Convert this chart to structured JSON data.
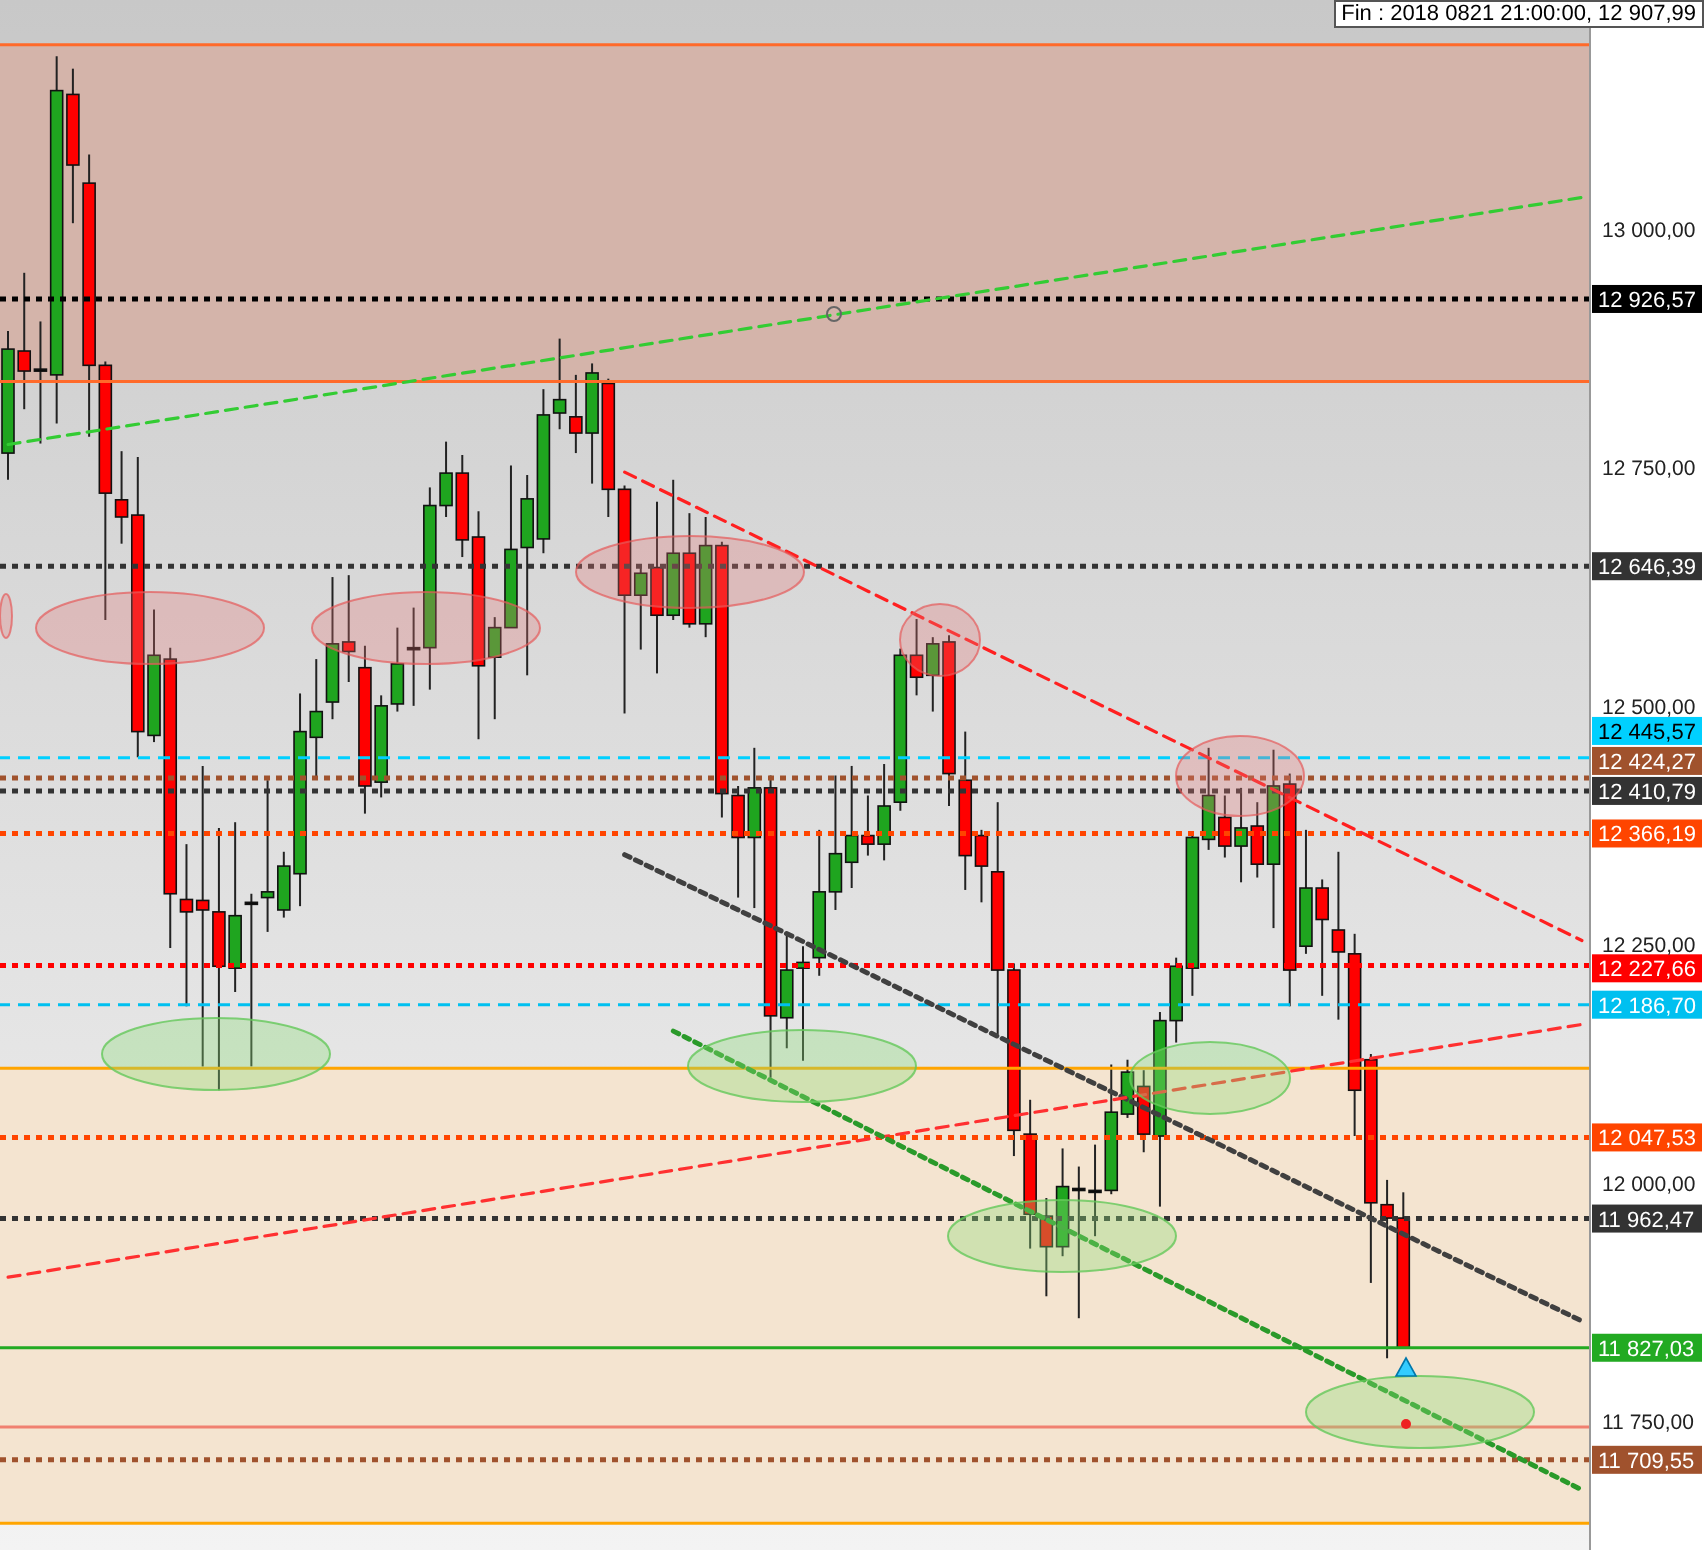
{
  "chart_data": {
    "type": "candlestick",
    "categories": [
      null,
      null,
      null,
      null,
      null,
      null,
      null,
      null,
      null,
      null,
      null,
      null,
      null,
      null,
      null,
      null,
      null,
      null,
      null,
      null,
      null,
      null,
      null,
      null,
      null,
      null,
      null,
      null,
      null,
      null,
      null,
      null,
      null,
      null,
      null,
      null,
      null,
      null,
      null,
      null,
      null,
      null,
      null,
      null,
      null,
      null,
      null,
      null,
      null,
      null,
      null,
      null,
      null,
      null,
      null,
      null,
      null,
      null,
      null,
      null,
      null,
      null,
      null,
      null,
      null,
      null,
      null,
      null,
      null,
      null,
      null,
      null,
      null,
      null,
      null,
      null,
      null,
      null,
      null,
      null,
      null,
      null,
      null,
      null,
      null,
      null,
      null,
      null,
      null,
      null,
      null,
      null,
      null,
      null,
      null,
      null,
      null,
      null
    ],
    "ohlc": [
      [
        12765,
        12893,
        12737,
        12874
      ],
      [
        12872,
        12954,
        12811,
        12851
      ],
      [
        12853,
        12903,
        12775,
        12853
      ],
      [
        12847,
        13181,
        12796,
        13145
      ],
      [
        13141,
        13168,
        13006,
        13067
      ],
      [
        13048,
        13078,
        12782,
        12857
      ],
      [
        12857,
        12861,
        12590,
        12723
      ],
      [
        12716,
        12767,
        12670,
        12698
      ],
      [
        12700,
        12761,
        12446,
        12473
      ],
      [
        12469,
        12601,
        12462,
        12553
      ],
      [
        12549,
        12561,
        12246,
        12303
      ],
      [
        12297,
        12355,
        12185,
        12284
      ],
      [
        12296,
        12437,
        12122,
        12286
      ],
      [
        12284,
        12372,
        12097,
        12227
      ],
      [
        12225,
        12378,
        12200,
        12280
      ],
      [
        12294,
        12303,
        12122,
        12294
      ],
      [
        12299,
        12422,
        12263,
        12305
      ],
      [
        12286,
        12347,
        12278,
        12332
      ],
      [
        12324,
        12513,
        12290,
        12473
      ],
      [
        12467,
        12549,
        12423,
        12494
      ],
      [
        12504,
        12635,
        12486,
        12565
      ],
      [
        12567,
        12637,
        12525,
        12557
      ],
      [
        12540,
        12563,
        12387,
        12416
      ],
      [
        12420,
        12511,
        12404,
        12500
      ],
      [
        12502,
        12582,
        12494,
        12544
      ],
      [
        12561,
        12603,
        12500,
        12561
      ],
      [
        12561,
        12729,
        12517,
        12710
      ],
      [
        12710,
        12777,
        12698,
        12744
      ],
      [
        12744,
        12763,
        12656,
        12674
      ],
      [
        12677,
        12704,
        12465,
        12542
      ],
      [
        12551,
        12593,
        12486,
        12582
      ],
      [
        12582,
        12752,
        12582,
        12664
      ],
      [
        12666,
        12742,
        12532,
        12717
      ],
      [
        12675,
        12832,
        12660,
        12805
      ],
      [
        12807,
        12885,
        12790,
        12821
      ],
      [
        12803,
        12847,
        12765,
        12786
      ],
      [
        12786,
        12859,
        12733,
        12849
      ],
      [
        12838,
        12843,
        12698,
        12727
      ],
      [
        12727,
        12731,
        12492,
        12616
      ],
      [
        12616,
        12645,
        12559,
        12639
      ],
      [
        12645,
        12714,
        12534,
        12595
      ],
      [
        12595,
        12737,
        12590,
        12660
      ],
      [
        12660,
        12702,
        12582,
        12586
      ],
      [
        12586,
        12698,
        12572,
        12668
      ],
      [
        12668,
        12672,
        12383,
        12408
      ],
      [
        12406,
        12416,
        12299,
        12362
      ],
      [
        12362,
        12456,
        12288,
        12414
      ],
      [
        12414,
        12427,
        12110,
        12175
      ],
      [
        12173,
        12263,
        12141,
        12223
      ],
      [
        12225,
        12248,
        12128,
        12231
      ],
      [
        12236,
        12370,
        12217,
        12305
      ],
      [
        12305,
        12427,
        12286,
        12345
      ],
      [
        12336,
        12437,
        12309,
        12364
      ],
      [
        12364,
        12406,
        12343,
        12355
      ],
      [
        12355,
        12439,
        12338,
        12395
      ],
      [
        12399,
        12560,
        12390,
        12553
      ],
      [
        12553,
        12591,
        12511,
        12530
      ],
      [
        12532,
        12572,
        12494,
        12565
      ],
      [
        12567,
        12574,
        12395,
        12429
      ],
      [
        12422,
        12473,
        12307,
        12343
      ],
      [
        12364,
        12370,
        12294,
        12332
      ],
      [
        12326,
        12399,
        12156,
        12223
      ],
      [
        12223,
        12230,
        12028,
        12055
      ],
      [
        12051,
        12087,
        11931,
        11967
      ],
      [
        11965,
        11984,
        11881,
        11933
      ],
      [
        11933,
        12036,
        11923,
        11996
      ],
      [
        11994,
        12017,
        11858,
        11994
      ],
      [
        11992,
        12040,
        11944,
        11992
      ],
      [
        11992,
        12124,
        11988,
        12074
      ],
      [
        12072,
        12129,
        12068,
        12116
      ],
      [
        12101,
        12118,
        12032,
        12051
      ],
      [
        12049,
        12179,
        11975,
        12170
      ],
      [
        12170,
        12236,
        12147,
        12227
      ],
      [
        12225,
        12368,
        12196,
        12362
      ],
      [
        12360,
        12456,
        12349,
        12406
      ],
      [
        12383,
        12406,
        12341,
        12353
      ],
      [
        12353,
        12414,
        12315,
        12372
      ],
      [
        12374,
        12399,
        12320,
        12334
      ],
      [
        12334,
        12454,
        12267,
        12416
      ],
      [
        12418,
        12429,
        12185,
        12223
      ],
      [
        12248,
        12370,
        12240,
        12309
      ],
      [
        12309,
        12318,
        12196,
        12276
      ],
      [
        12265,
        12347,
        12171,
        12242
      ],
      [
        12240,
        12261,
        12049,
        12097
      ],
      [
        12129,
        12135,
        11895,
        11979
      ],
      [
        11977,
        12003,
        11816,
        11963
      ],
      [
        11963,
        11990,
        11827,
        11827
      ],
      null,
      null,
      null,
      null,
      null,
      null,
      null,
      null,
      null,
      null,
      null
    ],
    "colors": [
      "#1fa51f",
      "#ff0000",
      "#000000",
      "#1fa51f",
      "#ff0000",
      "#ff0000",
      "#ff0000",
      "#ff0000",
      "#ff0000",
      "#1fa51f",
      "#ff0000",
      "#ff0000",
      "#ff0000",
      "#ff0000",
      "#1fa51f",
      "#000000",
      "#1fa51f",
      "#1fa51f",
      "#1fa51f",
      "#1fa51f",
      "#1fa51f",
      "#ff0000",
      "#ff0000",
      "#1fa51f",
      "#1fa51f",
      "#000000",
      "#1fa51f",
      "#1fa51f",
      "#ff0000",
      "#ff0000",
      "#1fa51f",
      "#1fa51f",
      "#1fa51f",
      "#1fa51f",
      "#1fa51f",
      "#ff0000",
      "#1fa51f",
      "#ff0000",
      "#ff0000",
      "#1fa51f",
      "#ff0000",
      "#1fa51f",
      "#ff0000",
      "#1fa51f",
      "#ff0000",
      "#ff0000",
      "#1fa51f",
      "#ff0000",
      "#1fa51f",
      "#1fa51f",
      "#1fa51f",
      "#1fa51f",
      "#1fa51f",
      "#ff0000",
      "#1fa51f",
      "#1fa51f",
      "#ff0000",
      "#1fa51f",
      "#ff0000",
      "#ff0000",
      "#ff0000",
      "#ff0000",
      "#ff0000",
      "#ff0000",
      "#ff0000",
      "#1fa51f",
      "#000000",
      "#000000",
      "#1fa51f",
      "#1fa51f",
      "#ff0000",
      "#1fa51f",
      "#1fa51f",
      "#1fa51f",
      "#1fa51f",
      "#ff0000",
      "#1fa51f",
      "#ff0000",
      "#1fa51f",
      "#ff0000",
      "#1fa51f",
      "#ff0000",
      "#ff0000",
      "#ff0000",
      "#ff0000",
      "#ff0000",
      "#ff0000",
      null,
      null,
      null,
      null,
      null,
      null,
      null,
      null,
      null,
      null,
      null
    ],
    "series": [
      {
        "type": "line",
        "color": "#33cc33",
        "line_style": "dashed",
        "values": [
          12774,
          null,
          null,
          null,
          null,
          null,
          null,
          null,
          null,
          null,
          null,
          null,
          null,
          null,
          null,
          null,
          null,
          null,
          null,
          null,
          null,
          null,
          null,
          null,
          null,
          null,
          null,
          null,
          null,
          null,
          null,
          null,
          null,
          null,
          null,
          null,
          null,
          null,
          null,
          null,
          null,
          null,
          null,
          null,
          null,
          null,
          null,
          null,
          null,
          null,
          null,
          null,
          null,
          null,
          null,
          null,
          null,
          null,
          null,
          null,
          null,
          null,
          null,
          null,
          null,
          null,
          null,
          null,
          null,
          null,
          null,
          null,
          null,
          null,
          null,
          null,
          null,
          null,
          null,
          null,
          null,
          null,
          null,
          null,
          null,
          null,
          null,
          null,
          null,
          null,
          null,
          null,
          null,
          null,
          null,
          null,
          null,
          13033
        ]
      },
      {
        "type": "line",
        "color": "#ff2020",
        "line_style": "dashed",
        "values": [
          null,
          null,
          null,
          null,
          null,
          null,
          null,
          null,
          null,
          null,
          null,
          null,
          null,
          null,
          null,
          null,
          null,
          null,
          null,
          null,
          null,
          null,
          null,
          null,
          null,
          null,
          null,
          null,
          null,
          null,
          null,
          null,
          null,
          null,
          null,
          null,
          null,
          null,
          12745,
          null,
          null,
          null,
          null,
          null,
          null,
          null,
          null,
          null,
          null,
          null,
          null,
          null,
          null,
          null,
          null,
          null,
          null,
          null,
          null,
          null,
          null,
          null,
          null,
          null,
          null,
          null,
          null,
          null,
          null,
          null,
          null,
          null,
          null,
          null,
          null,
          null,
          null,
          null,
          null,
          null,
          null,
          null,
          null,
          null,
          null,
          null,
          null,
          null,
          null,
          null,
          null,
          null,
          null,
          null,
          null,
          null,
          null,
          12254
        ]
      },
      {
        "type": "line",
        "color": "#404040",
        "line_style": "dotted",
        "values": [
          null,
          null,
          null,
          null,
          null,
          null,
          null,
          null,
          null,
          null,
          null,
          null,
          null,
          null,
          null,
          null,
          null,
          null,
          null,
          null,
          null,
          null,
          null,
          null,
          null,
          null,
          null,
          null,
          null,
          null,
          null,
          null,
          null,
          null,
          null,
          null,
          null,
          null,
          12344,
          null,
          null,
          null,
          null,
          null,
          null,
          null,
          null,
          null,
          null,
          null,
          null,
          null,
          null,
          null,
          null,
          null,
          null,
          null,
          null,
          null,
          null,
          null,
          null,
          null,
          null,
          null,
          null,
          null,
          null,
          null,
          null,
          null,
          null,
          null,
          null,
          null,
          null,
          null,
          null,
          null,
          null,
          null,
          null,
          null,
          null,
          null,
          null,
          null,
          null,
          null,
          null,
          null,
          null,
          null,
          null,
          null,
          null,
          11855
        ]
      },
      {
        "type": "line",
        "color": "#ff3030",
        "line_style": "dashed",
        "values": [
          11901,
          null,
          null,
          null,
          null,
          null,
          null,
          null,
          null,
          null,
          null,
          null,
          null,
          null,
          null,
          null,
          null,
          null,
          null,
          null,
          null,
          null,
          null,
          null,
          null,
          null,
          null,
          null,
          null,
          null,
          null,
          null,
          null,
          null,
          null,
          null,
          null,
          null,
          null,
          null,
          null,
          null,
          null,
          null,
          null,
          null,
          null,
          null,
          null,
          null,
          null,
          null,
          null,
          null,
          null,
          null,
          null,
          null,
          null,
          null,
          null,
          null,
          null,
          null,
          null,
          null,
          null,
          null,
          null,
          null,
          null,
          null,
          null,
          null,
          null,
          null,
          null,
          null,
          null,
          null,
          null,
          null,
          null,
          null,
          null,
          null,
          null,
          null,
          null,
          null,
          null,
          null,
          null,
          null,
          null,
          null,
          null,
          12166
        ]
      },
      {
        "type": "line",
        "color": "#2a9a2a",
        "line_style": "dotted",
        "values": [
          null,
          null,
          null,
          null,
          null,
          null,
          null,
          null,
          null,
          null,
          null,
          null,
          null,
          null,
          null,
          null,
          null,
          null,
          null,
          null,
          null,
          null,
          null,
          null,
          null,
          null,
          null,
          null,
          null,
          null,
          null,
          null,
          null,
          null,
          null,
          null,
          null,
          null,
          null,
          null,
          null,
          12159,
          null,
          null,
          null,
          null,
          null,
          null,
          null,
          null,
          null,
          null,
          null,
          null,
          null,
          null,
          null,
          null,
          null,
          null,
          null,
          null,
          null,
          null,
          null,
          null,
          null,
          null,
          null,
          null,
          null,
          null,
          null,
          null,
          null,
          null,
          null,
          null,
          null,
          null,
          null,
          null,
          null,
          null,
          null,
          null,
          null,
          null,
          null,
          null,
          null,
          null,
          null,
          null,
          null,
          null,
          null,
          11678
        ]
      }
    ],
    "ylim": [
      11615,
      13240
    ],
    "yticks": [
      {
        "value": 11750,
        "label": "11 750,00"
      },
      {
        "value": 12000,
        "label": "12 000,00"
      },
      {
        "value": 12250,
        "label": "12 250,00"
      },
      {
        "value": 12500,
        "label": "12 500,00"
      },
      {
        "value": 12750,
        "label": "12 750,00"
      },
      {
        "value": 13000,
        "label": "13 000,00"
      }
    ],
    "tick_labels": "y",
    "bands": [
      {
        "axis": "y",
        "from": 12840,
        "to": 13193,
        "color": "#d4b4aa"
      },
      {
        "axis": "y",
        "from": 11643,
        "to": 12120,
        "color": "#f4e4d0"
      }
    ],
    "ref_lines": [
      {
        "axis": "y",
        "value": 13193,
        "label": null,
        "color": "#ff6a2a",
        "line_style": "solid"
      },
      {
        "axis": "y",
        "value": 12840,
        "label": null,
        "color": "#ff6a2a",
        "line_style": "solid"
      },
      {
        "axis": "y",
        "value": 12120,
        "label": null,
        "color": "#ffa500",
        "line_style": "solid"
      },
      {
        "axis": "y",
        "value": 11643,
        "label": null,
        "color": "#ffa500",
        "line_style": "solid"
      },
      {
        "axis": "y",
        "value": 11744,
        "label": null,
        "color": "#f08070",
        "line_style": "solid"
      },
      {
        "axis": "y",
        "value": 12926.57,
        "label": "12 926,57",
        "color": "#000000",
        "line_style": "dotted"
      },
      {
        "axis": "y",
        "value": 12646.39,
        "label": "12 646,39",
        "color": "#333333",
        "line_style": "dotted"
      },
      {
        "axis": "y",
        "value": 12445.57,
        "label": "12 445,57",
        "color": "#00d0ff",
        "line_style": "dashed"
      },
      {
        "axis": "y",
        "value": 12424.27,
        "label": "12 424,27",
        "color": "#a0522d",
        "line_style": "dotted"
      },
      {
        "axis": "y",
        "value": 12410.79,
        "label": "12 410,79",
        "color": "#333333",
        "line_style": "dotted"
      },
      {
        "axis": "y",
        "value": 12366.19,
        "label": "12 366,19",
        "color": "#ff4500",
        "line_style": "dotted"
      },
      {
        "axis": "y",
        "value": 12227.66,
        "label": "12 227,66",
        "color": "#ff0000",
        "line_style": "dotted"
      },
      {
        "axis": "y",
        "value": 12186.7,
        "label": "12 186,70",
        "color": "#00c0f0",
        "line_style": "dashed"
      },
      {
        "axis": "y",
        "value": 12047.53,
        "label": "12 047,53",
        "color": "#ff4500",
        "line_style": "dotted"
      },
      {
        "axis": "y",
        "value": 11962.47,
        "label": "11 962,47",
        "color": "#333333",
        "line_style": "dotted"
      },
      {
        "axis": "y",
        "value": 11827.03,
        "label": "11 827,03",
        "color": "#22aa22",
        "line_style": "solid"
      },
      {
        "axis": "y",
        "value": 11709.55,
        "label": "11 709,55",
        "color": "#a0522d",
        "line_style": "dotted"
      }
    ],
    "annotations": [
      "Fin : 2018 0821 21:00:00, 12 907,99"
    ]
  }
}
